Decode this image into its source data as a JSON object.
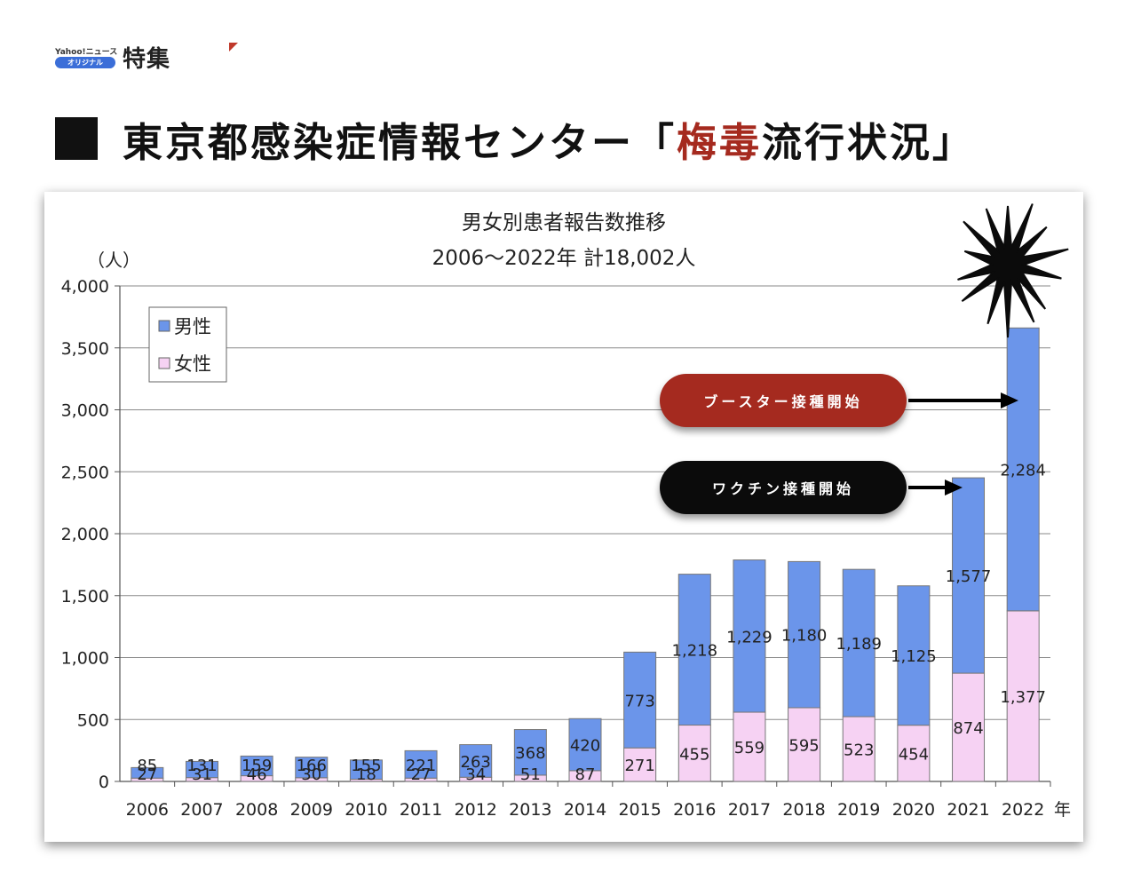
{
  "brand": {
    "yahoo_text": "Yahoo!ニュース",
    "pill_text": "オリジナル",
    "tokushu": "特集"
  },
  "headline": {
    "prefix": "東京都感染症情報センター「",
    "highlight": "梅毒",
    "suffix": "流行状況」"
  },
  "colors": {
    "male": "#6b95ea",
    "female": "#f6d2f3",
    "accent_red": "#a52a1f",
    "black": "#0b0b0b"
  },
  "callouts": {
    "booster": "ブースター接種開始",
    "vaccine": "ワクチン接種開始"
  },
  "chart_data": {
    "type": "bar",
    "stacked": true,
    "title": "男女別患者報告数推移",
    "subtitle": "2006〜2022年 計18,002人",
    "ylabel": "（人）",
    "xlabel": "年",
    "ylim": [
      0,
      4000
    ],
    "yticks": [
      0,
      500,
      1000,
      1500,
      2000,
      2500,
      3000,
      3500,
      4000
    ],
    "ytick_labels": [
      "0",
      "500",
      "1,000",
      "1,500",
      "2,000",
      "2,500",
      "3,000",
      "3,500",
      "4,000"
    ],
    "categories": [
      "2006",
      "2007",
      "2008",
      "2009",
      "2010",
      "2011",
      "2012",
      "2013",
      "2014",
      "2015",
      "2016",
      "2017",
      "2018",
      "2019",
      "2020",
      "2021",
      "2022"
    ],
    "series": [
      {
        "name": "女性",
        "color": "#f6d2f3",
        "values": [
          27,
          31,
          46,
          30,
          18,
          27,
          34,
          51,
          87,
          271,
          455,
          559,
          595,
          523,
          454,
          874,
          1377
        ],
        "labels": [
          "27",
          "31",
          "46",
          "30",
          "18",
          "27",
          "34",
          "51",
          "87",
          "271",
          "455",
          "559",
          "595",
          "523",
          "454",
          "874",
          "1,377"
        ]
      },
      {
        "name": "男性",
        "color": "#6b95ea",
        "values": [
          85,
          131,
          159,
          166,
          155,
          221,
          263,
          368,
          420,
          773,
          1218,
          1229,
          1180,
          1189,
          1125,
          1577,
          2284
        ],
        "labels": [
          "85",
          "131",
          "159",
          "166",
          "155",
          "221",
          "263",
          "368",
          "420",
          "773",
          "1,218",
          "1,229",
          "1,180",
          "1,189",
          "1,125",
          "1,577",
          "2,284"
        ]
      }
    ],
    "legend": [
      "男性",
      "女性"
    ],
    "legend_position": "top-left",
    "grid": true
  }
}
